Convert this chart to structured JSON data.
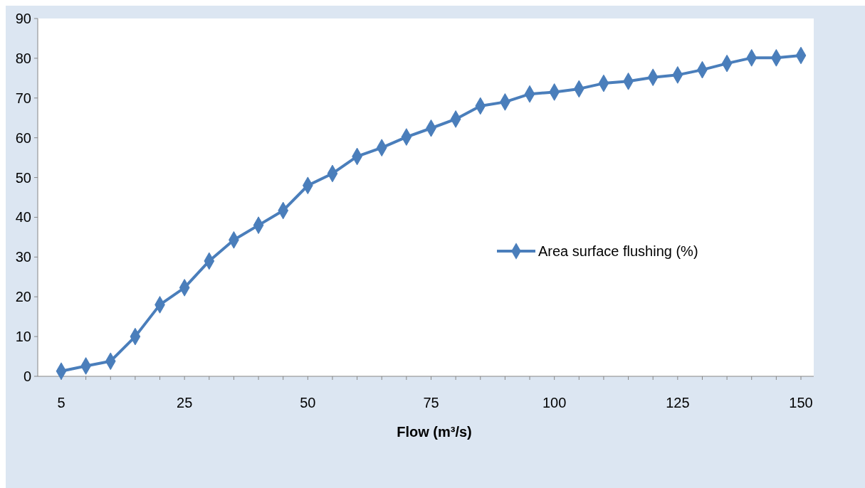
{
  "chart_data": {
    "type": "line",
    "xlabel": "Flow (m³/s)",
    "categories": [
      "5",
      null,
      null,
      null,
      null,
      "25",
      null,
      null,
      null,
      null,
      "50",
      null,
      null,
      null,
      null,
      "75",
      null,
      null,
      null,
      null,
      "100",
      null,
      null,
      null,
      null,
      "125",
      null,
      null,
      null,
      null,
      "150"
    ],
    "series": [
      {
        "name": "Area surface flushing (%)",
        "color": "#4a7ebb",
        "values": [
          1.3,
          2.6,
          3.8,
          10,
          18,
          22.3,
          29,
          34.3,
          38,
          41.7,
          48,
          51,
          55.3,
          57.5,
          60.2,
          62.4,
          64.7,
          68,
          69,
          71,
          71.5,
          72.3,
          73.7,
          74.2,
          75.2,
          75.8,
          77.1,
          78.7,
          80.1,
          80.1,
          80.7
        ]
      }
    ],
    "ylim": [
      0,
      90
    ],
    "yticks": [
      0,
      10,
      20,
      30,
      40,
      50,
      60,
      70,
      80,
      90
    ],
    "grid": false,
    "legend": "right",
    "marker": "diamond",
    "line_style": "solid"
  }
}
